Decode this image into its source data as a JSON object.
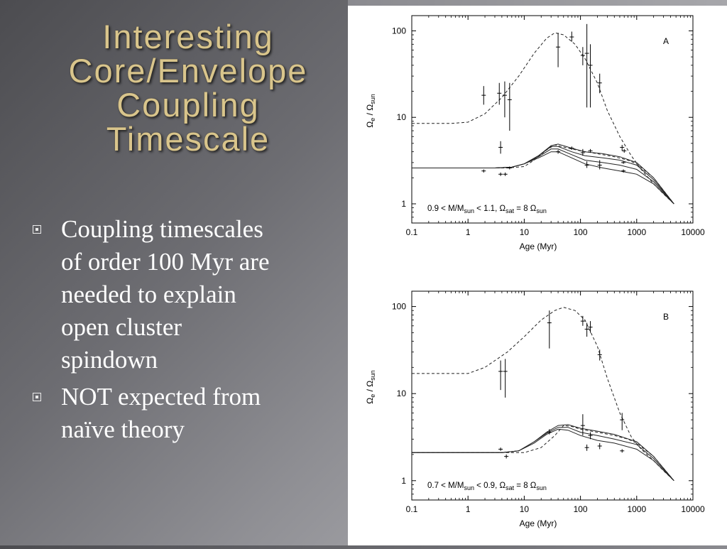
{
  "slide": {
    "title_lines": [
      "Interesting",
      "Core/Envelope",
      "Coupling",
      "Timescale"
    ],
    "bullets": [
      {
        "lines": [
          "Coupling timescales",
          "of order 100 Myr are",
          "needed to explain",
          "open cluster",
          "spindown"
        ]
      },
      {
        "lines": [
          "NOT expected from",
          "naïve theory"
        ]
      }
    ]
  },
  "colors": {
    "title": "#d9c58c",
    "bullet_text": "#ffffff",
    "ink": "#000000",
    "background": "#707075"
  },
  "chart_data": [
    {
      "type": "line",
      "panel_label": "A",
      "xlabel": "Age (Myr)",
      "ylabel": "Ωe / Ωsun",
      "xscale": "log",
      "yscale": "log",
      "xlim": [
        0.1,
        10000
      ],
      "ylim": [
        0.6,
        150
      ],
      "xticks": [
        "0.1",
        "1",
        "10",
        "100",
        "1000",
        "10000"
      ],
      "yticks": [
        "1",
        "10",
        "100"
      ],
      "annotation": "0.9 < M/Msun < 1.1,  Ωsat = 8 Ωsun",
      "series": [
        {
          "style": "dashed",
          "points": [
            [
              0.1,
              8.5
            ],
            [
              0.5,
              8.5
            ],
            [
              1,
              8.8
            ],
            [
              2,
              11
            ],
            [
              4,
              17
            ],
            [
              8,
              30
            ],
            [
              15,
              55
            ],
            [
              25,
              82
            ],
            [
              35,
              95
            ],
            [
              50,
              90
            ],
            [
              80,
              70
            ],
            [
              120,
              48
            ],
            [
              200,
              25
            ],
            [
              300,
              12
            ],
            [
              500,
              6
            ],
            [
              800,
              3.6
            ],
            [
              1200,
              2.5
            ],
            [
              2000,
              1.7
            ],
            [
              3000,
              1.3
            ],
            [
              4600,
              1.0
            ]
          ]
        },
        {
          "style": "dashed",
          "points": [
            [
              0.1,
              2.6
            ],
            [
              2,
              2.6
            ],
            [
              5,
              2.6
            ],
            [
              10,
              2.7
            ],
            [
              15,
              3.2
            ],
            [
              25,
              4.2
            ],
            [
              35,
              4.8
            ],
            [
              60,
              4.4
            ],
            [
              100,
              4.1
            ],
            [
              200,
              3.8
            ],
            [
              400,
              3.5
            ],
            [
              700,
              3.2
            ],
            [
              1000,
              2.9
            ],
            [
              2000,
              2.0
            ],
            [
              4600,
              1.0
            ]
          ]
        },
        {
          "style": "solid",
          "points": [
            [
              0.1,
              2.6
            ],
            [
              3,
              2.6
            ],
            [
              6,
              2.65
            ],
            [
              10,
              2.9
            ],
            [
              18,
              3.6
            ],
            [
              30,
              4.7
            ],
            [
              40,
              4.9
            ],
            [
              70,
              4.4
            ],
            [
              120,
              4.0
            ],
            [
              250,
              3.8
            ],
            [
              500,
              3.5
            ],
            [
              1000,
              3.0
            ],
            [
              2000,
              2.0
            ],
            [
              4600,
              1.0
            ]
          ]
        },
        {
          "style": "solid",
          "points": [
            [
              0.1,
              2.6
            ],
            [
              3,
              2.6
            ],
            [
              6,
              2.65
            ],
            [
              10,
              2.9
            ],
            [
              18,
              3.6
            ],
            [
              30,
              4.6
            ],
            [
              40,
              4.6
            ],
            [
              70,
              4.0
            ],
            [
              120,
              3.6
            ],
            [
              250,
              3.4
            ],
            [
              500,
              3.2
            ],
            [
              1000,
              2.8
            ],
            [
              2000,
              1.9
            ],
            [
              4600,
              1.0
            ]
          ]
        },
        {
          "style": "solid",
          "points": [
            [
              0.1,
              2.6
            ],
            [
              3,
              2.6
            ],
            [
              6,
              2.65
            ],
            [
              10,
              2.9
            ],
            [
              18,
              3.5
            ],
            [
              30,
              4.3
            ],
            [
              40,
              4.3
            ],
            [
              70,
              3.7
            ],
            [
              120,
              3.2
            ],
            [
              250,
              3.0
            ],
            [
              500,
              2.8
            ],
            [
              1000,
              2.5
            ],
            [
              2000,
              1.8
            ],
            [
              4600,
              1.0
            ]
          ]
        },
        {
          "style": "solid",
          "points": [
            [
              0.1,
              2.6
            ],
            [
              3,
              2.6
            ],
            [
              6,
              2.65
            ],
            [
              10,
              2.9
            ],
            [
              18,
              3.4
            ],
            [
              30,
              4.0
            ],
            [
              40,
              4.0
            ],
            [
              70,
              3.4
            ],
            [
              120,
              2.9
            ],
            [
              250,
              2.6
            ],
            [
              500,
              2.4
            ],
            [
              1000,
              2.2
            ],
            [
              2000,
              1.7
            ],
            [
              4600,
              1.0
            ]
          ]
        }
      ],
      "points": [
        {
          "x": 1.9,
          "y": 18,
          "ylo": 14,
          "yhi": 23
        },
        {
          "x": 3.6,
          "y": 19,
          "ylo": 14,
          "yhi": 25
        },
        {
          "x": 4.5,
          "y": 18,
          "ylo": 10,
          "yhi": 26
        },
        {
          "x": 5.5,
          "y": 16,
          "ylo": 7,
          "yhi": 25
        },
        {
          "x": 40,
          "y": 65,
          "ylo": 38,
          "yhi": 95
        },
        {
          "x": 70,
          "y": 85,
          "ylo": 75,
          "yhi": 98
        },
        {
          "x": 110,
          "y": 52,
          "ylo": 40,
          "yhi": 65
        },
        {
          "x": 130,
          "y": 55,
          "ylo": 13,
          "yhi": 120
        },
        {
          "x": 150,
          "y": 40,
          "ylo": 13,
          "yhi": 70
        },
        {
          "x": 220,
          "y": 25,
          "ylo": 19,
          "yhi": 32
        },
        {
          "x": 1.9,
          "y": 2.4,
          "ylo": 2.3,
          "yhi": 2.5
        },
        {
          "x": 3.8,
          "y": 4.5,
          "ylo": 3.8,
          "yhi": 5.3
        },
        {
          "x": 3.8,
          "y": 2.2,
          "ylo": 2.1,
          "yhi": 2.3
        },
        {
          "x": 4.6,
          "y": 2.2,
          "ylo": 2.1,
          "yhi": 2.3
        },
        {
          "x": 5.5,
          "y": 2.6,
          "ylo": 2.5,
          "yhi": 2.7
        },
        {
          "x": 40,
          "y": 4.0,
          "ylo": 3.8,
          "yhi": 4.2
        },
        {
          "x": 70,
          "y": 4.4,
          "ylo": 4.2,
          "yhi": 4.6
        },
        {
          "x": 110,
          "y": 3.9,
          "ylo": 3.6,
          "yhi": 4.3
        },
        {
          "x": 130,
          "y": 2.8,
          "ylo": 2.6,
          "yhi": 3.1
        },
        {
          "x": 150,
          "y": 4.1,
          "ylo": 3.9,
          "yhi": 4.3
        },
        {
          "x": 220,
          "y": 2.8,
          "ylo": 2.5,
          "yhi": 3.2
        },
        {
          "x": 550,
          "y": 4.5,
          "ylo": 4.1,
          "yhi": 4.8
        },
        {
          "x": 600,
          "y": 4.1,
          "ylo": 3.9,
          "yhi": 4.3
        },
        {
          "x": 580,
          "y": 3.0,
          "ylo": 2.9,
          "yhi": 3.1
        },
        {
          "x": 580,
          "y": 2.4,
          "ylo": 2.3,
          "yhi": 2.5
        }
      ]
    },
    {
      "type": "line",
      "panel_label": "B",
      "xlabel": "Age (Myr)",
      "ylabel": "Ωe / Ωsun",
      "xscale": "log",
      "yscale": "log",
      "xlim": [
        0.1,
        10000
      ],
      "ylim": [
        0.6,
        150
      ],
      "xticks": [
        "0.1",
        "1",
        "10",
        "100",
        "1000",
        "10000"
      ],
      "yticks": [
        "1",
        "10",
        "100"
      ],
      "annotation": "0.7 < M/Msun < 0.9,  Ωsat = 8 Ωsun",
      "series": [
        {
          "style": "dashed",
          "points": [
            [
              0.1,
              17
            ],
            [
              1,
              17
            ],
            [
              2,
              20
            ],
            [
              5,
              30
            ],
            [
              10,
              45
            ],
            [
              20,
              70
            ],
            [
              35,
              90
            ],
            [
              50,
              98
            ],
            [
              80,
              90
            ],
            [
              120,
              70
            ],
            [
              200,
              35
            ],
            [
              300,
              15
            ],
            [
              500,
              6
            ],
            [
              800,
              3.2
            ],
            [
              1200,
              2.3
            ],
            [
              2000,
              1.7
            ],
            [
              3000,
              1.3
            ],
            [
              4600,
              1.0
            ]
          ]
        },
        {
          "style": "dashed",
          "points": [
            [
              0.1,
              2.1
            ],
            [
              5,
              2.1
            ],
            [
              10,
              2.1
            ],
            [
              20,
              2.4
            ],
            [
              35,
              3.3
            ],
            [
              50,
              4.3
            ],
            [
              70,
              4.2
            ],
            [
              100,
              3.9
            ],
            [
              200,
              3.6
            ],
            [
              400,
              3.3
            ],
            [
              700,
              3.0
            ],
            [
              1000,
              2.7
            ],
            [
              2000,
              1.9
            ],
            [
              4600,
              1.0
            ]
          ]
        },
        {
          "style": "solid",
          "points": [
            [
              0.1,
              2.1
            ],
            [
              4,
              2.1
            ],
            [
              8,
              2.2
            ],
            [
              15,
              2.8
            ],
            [
              25,
              3.6
            ],
            [
              40,
              4.3
            ],
            [
              60,
              4.4
            ],
            [
              100,
              4.0
            ],
            [
              200,
              3.7
            ],
            [
              400,
              3.4
            ],
            [
              1000,
              2.8
            ],
            [
              2000,
              1.9
            ],
            [
              4600,
              1.0
            ]
          ]
        },
        {
          "style": "solid",
          "points": [
            [
              0.1,
              2.1
            ],
            [
              4,
              2.1
            ],
            [
              8,
              2.2
            ],
            [
              15,
              2.8
            ],
            [
              25,
              3.5
            ],
            [
              40,
              4.1
            ],
            [
              60,
              4.1
            ],
            [
              100,
              3.6
            ],
            [
              200,
              3.3
            ],
            [
              400,
              3.0
            ],
            [
              1000,
              2.6
            ],
            [
              2000,
              1.8
            ],
            [
              4600,
              1.0
            ]
          ]
        },
        {
          "style": "solid",
          "points": [
            [
              0.1,
              2.1
            ],
            [
              4,
              2.1
            ],
            [
              8,
              2.2
            ],
            [
              15,
              2.7
            ],
            [
              25,
              3.4
            ],
            [
              40,
              3.9
            ],
            [
              60,
              3.8
            ],
            [
              100,
              3.3
            ],
            [
              200,
              2.9
            ],
            [
              400,
              2.7
            ],
            [
              1000,
              2.3
            ],
            [
              2000,
              1.7
            ],
            [
              4600,
              1.0
            ]
          ]
        }
      ],
      "points": [
        {
          "x": 3.8,
          "y": 18,
          "ylo": 11,
          "yhi": 24
        },
        {
          "x": 4.6,
          "y": 18,
          "ylo": 9,
          "yhi": 25
        },
        {
          "x": 28,
          "y": 65,
          "ylo": 33,
          "yhi": 90
        },
        {
          "x": 110,
          "y": 68,
          "ylo": 60,
          "yhi": 78
        },
        {
          "x": 130,
          "y": 55,
          "ylo": 45,
          "yhi": 65
        },
        {
          "x": 150,
          "y": 58,
          "ylo": 50,
          "yhi": 68
        },
        {
          "x": 220,
          "y": 28,
          "ylo": 24,
          "yhi": 32
        },
        {
          "x": 550,
          "y": 5.0,
          "ylo": 3.8,
          "yhi": 6.0
        },
        {
          "x": 3.8,
          "y": 2.3,
          "ylo": 2.2,
          "yhi": 2.4
        },
        {
          "x": 4.8,
          "y": 1.9,
          "ylo": 1.8,
          "yhi": 2.0
        },
        {
          "x": 28,
          "y": 3.6,
          "ylo": 3.4,
          "yhi": 3.9
        },
        {
          "x": 110,
          "y": 4.3,
          "ylo": 3.3,
          "yhi": 5.8
        },
        {
          "x": 130,
          "y": 2.4,
          "ylo": 2.2,
          "yhi": 2.6
        },
        {
          "x": 150,
          "y": 3.3,
          "ylo": 3.0,
          "yhi": 3.6
        },
        {
          "x": 220,
          "y": 2.5,
          "ylo": 2.3,
          "yhi": 2.7
        },
        {
          "x": 550,
          "y": 2.2,
          "ylo": 2.1,
          "yhi": 2.3
        }
      ]
    }
  ]
}
